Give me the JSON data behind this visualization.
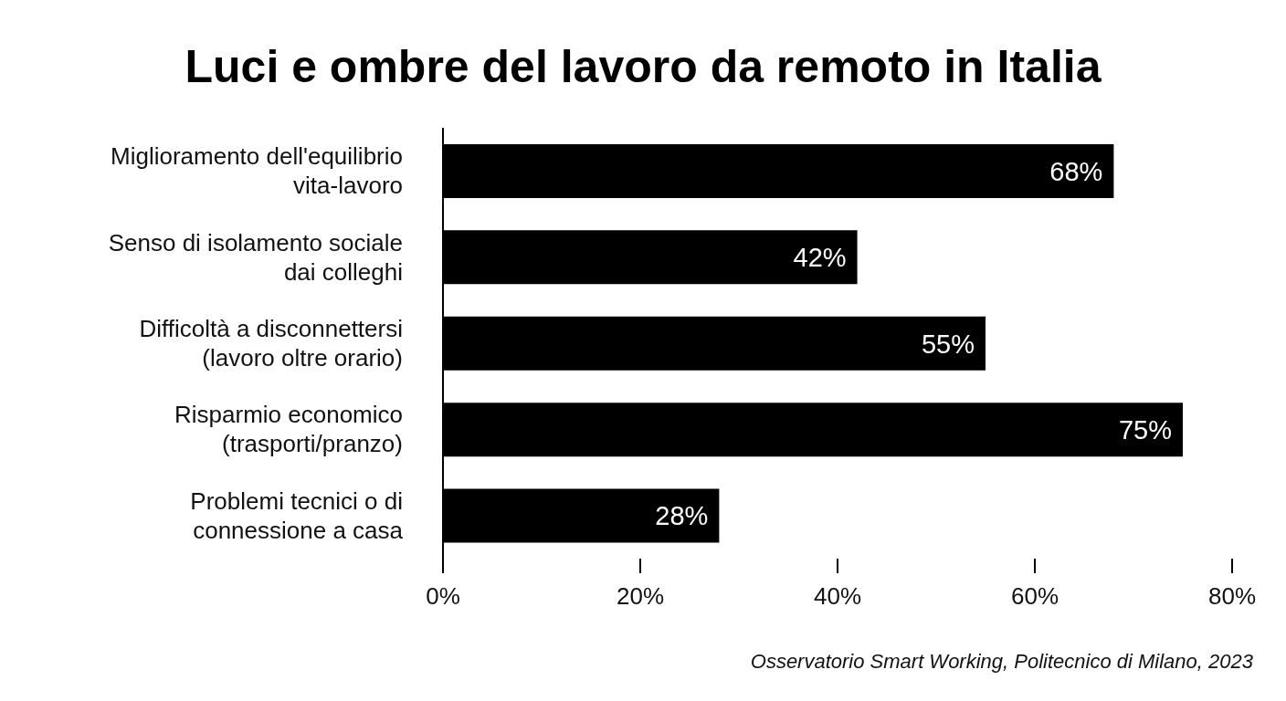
{
  "chart_data": {
    "type": "bar",
    "orientation": "horizontal",
    "title": "Luci e ombre del lavoro da remoto in Italia",
    "categories": [
      "Miglioramento dell'equilibrio vita-lavoro",
      "Senso di isolamento sociale dai colleghi",
      "Difficoltà a disconnettersi (lavoro oltre orario)",
      "Risparmio economico (trasporti/pranzo)",
      "Problemi tecnici o di connessione a casa"
    ],
    "values": [
      68,
      42,
      55,
      75,
      28
    ],
    "color": "#000000",
    "value_labels": [
      "68%",
      "42%",
      "55%",
      "75%",
      "28%"
    ],
    "xlim": [
      0,
      80
    ],
    "xticks": [
      {
        "value": 0,
        "label": "0%"
      },
      {
        "value": 20,
        "label": "20%"
      },
      {
        "value": 40,
        "label": "40%"
      },
      {
        "value": 60,
        "label": "60%"
      },
      {
        "value": 80,
        "label": "80%"
      }
    ],
    "grid": false,
    "annotations": [
      "Osservatorio Smart Working, Politecnico di Milano, 2023"
    ]
  }
}
